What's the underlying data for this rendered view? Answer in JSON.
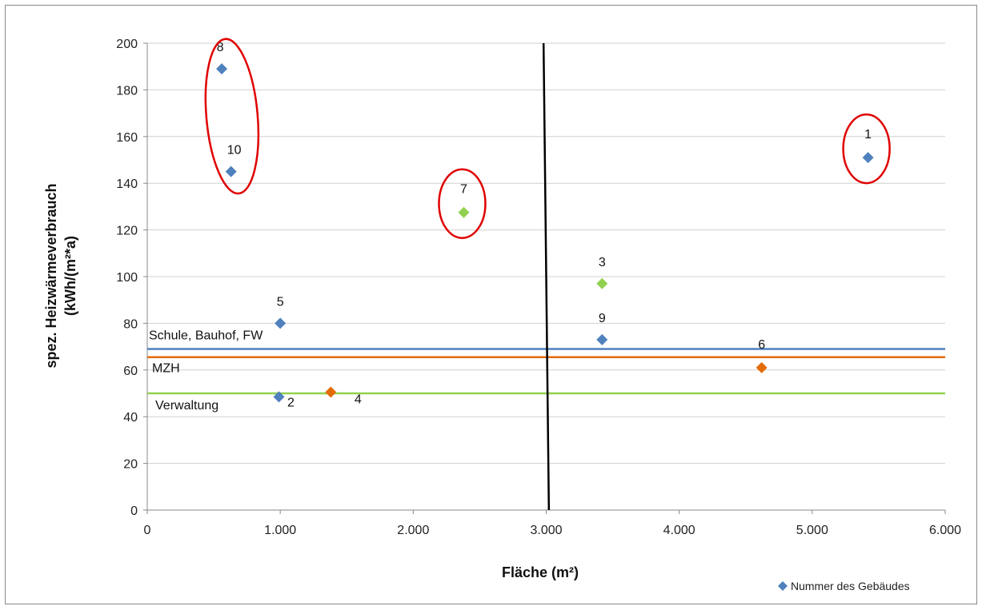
{
  "chart_data": {
    "type": "scatter",
    "xlabel": "Fläche  (m²)",
    "ylabel_lines": [
      "spez. Heizwärmeverbrauch",
      "(kWh/(m²*a)"
    ],
    "xlim": [
      0,
      6000
    ],
    "ylim": [
      0,
      200
    ],
    "x_ticks": [
      {
        "value": 0,
        "label": "0"
      },
      {
        "value": 1000,
        "label": "1.000"
      },
      {
        "value": 2000,
        "label": "2.000"
      },
      {
        "value": 3000,
        "label": "3.000"
      },
      {
        "value": 4000,
        "label": "4.000"
      },
      {
        "value": 5000,
        "label": "5.000"
      },
      {
        "value": 6000,
        "label": "6.000"
      }
    ],
    "y_ticks": [
      {
        "value": 0,
        "label": "0"
      },
      {
        "value": 20,
        "label": "20"
      },
      {
        "value": 40,
        "label": "40"
      },
      {
        "value": 60,
        "label": "60"
      },
      {
        "value": 80,
        "label": "80"
      },
      {
        "value": 100,
        "label": "100"
      },
      {
        "value": 120,
        "label": "120"
      },
      {
        "value": 140,
        "label": "140"
      },
      {
        "value": 160,
        "label": "160"
      },
      {
        "value": 180,
        "label": "180"
      },
      {
        "value": 200,
        "label": "200"
      }
    ],
    "grid": "horizontal",
    "legend": {
      "position": "bottom-right",
      "label": "Nummer des Gebäudes",
      "color": "#4f81bd"
    },
    "colors": {
      "blue": "#4f81bd",
      "green": "#92d050",
      "orange": "#e36c09",
      "circle": "#e00000",
      "divider": "#000000"
    },
    "points": [
      {
        "label": "1",
        "x": 5420,
        "y": 151,
        "color": "#4f81bd",
        "circled": true
      },
      {
        "label": "2",
        "x": 990,
        "y": 48.5,
        "color": "#4f81bd",
        "circled": false
      },
      {
        "label": "3",
        "x": 3420,
        "y": 97,
        "color": "#92d050",
        "circled": false
      },
      {
        "label": "4",
        "x": 1380,
        "y": 50.5,
        "color": "#e36c09",
        "circled": false
      },
      {
        "label": "5",
        "x": 1000,
        "y": 80,
        "color": "#4f81bd",
        "circled": false
      },
      {
        "label": "6",
        "x": 4620,
        "y": 61,
        "color": "#e36c09",
        "circled": false
      },
      {
        "label": "7",
        "x": 2380,
        "y": 127.5,
        "color": "#92d050",
        "circled": true
      },
      {
        "label": "8",
        "x": 560,
        "y": 189,
        "color": "#4f81bd",
        "circled": true
      },
      {
        "label": "9",
        "x": 3420,
        "y": 73,
        "color": "#4f81bd",
        "circled": false
      },
      {
        "label": "10",
        "x": 630,
        "y": 145,
        "color": "#4f81bd",
        "circled": true
      }
    ],
    "reference_lines": [
      {
        "label": "Schule, Bauhof, FW",
        "y": 69,
        "color": "#4f81bd"
      },
      {
        "label": "MZH",
        "y": 65.5,
        "color": "#e36c09"
      },
      {
        "label": "Verwaltung",
        "y": 50,
        "color": "#92d050"
      }
    ],
    "divider_line": {
      "from": [
        2980,
        200
      ],
      "to": [
        3020,
        0
      ]
    }
  }
}
